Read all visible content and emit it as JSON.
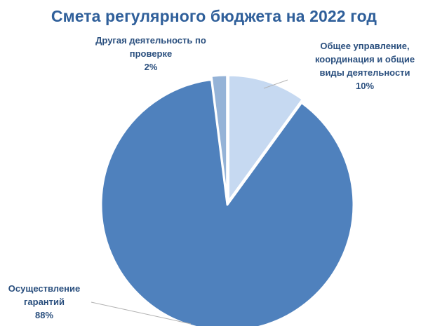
{
  "chart_data": {
    "type": "pie",
    "title": "Смета регулярного бюджета на 2022 год",
    "slices": [
      {
        "name": "Общее управление, координация и общие виды деятельности",
        "value": 10,
        "label_lines": [
          "Общее управление,",
          "координация и общие",
          "виды деятельности",
          "10%"
        ],
        "color": "#c6d9f1"
      },
      {
        "name": "Осуществление гарантий",
        "value": 88,
        "label_lines": [
          "Осуществление",
          "гарантий",
          "88%"
        ],
        "color": "#4f81bd"
      },
      {
        "name": "Другая деятельность по проверке",
        "value": 2,
        "label_lines": [
          "Другая деятельность по",
          "проверке",
          "2%"
        ],
        "color": "#95b3d7"
      }
    ],
    "start_angle_deg": 0,
    "direction": "clockwise",
    "slice_border_color": "#ffffff",
    "label_color": "#2a4f7e",
    "legend": "none"
  },
  "colors": {
    "title": "#2f5f9a",
    "leader_line": "#b3b3b3"
  }
}
